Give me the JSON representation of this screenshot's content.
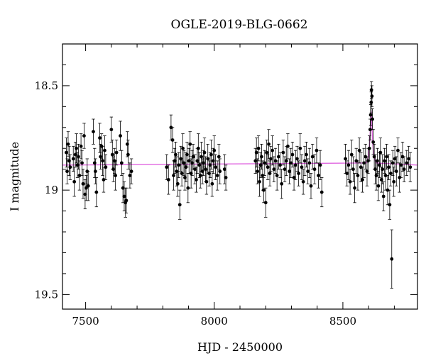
{
  "chart_data": {
    "type": "scatter",
    "title": "OGLE-2019-BLG-0662",
    "xlabel": "HJD - 2450000",
    "ylabel": "I magnitude",
    "xlim": [
      7410,
      8790
    ],
    "ylim": [
      19.57,
      18.3
    ],
    "y_inverted": true,
    "grid": false,
    "x_ticks": [
      {
        "value": 7500,
        "label": "7500"
      },
      {
        "value": 8000,
        "label": "8000"
      },
      {
        "value": 8500,
        "label": "8500"
      }
    ],
    "y_ticks": [
      {
        "value": 18.5,
        "label": "18.5"
      },
      {
        "value": 19.0,
        "label": "19"
      },
      {
        "value": 19.5,
        "label": "19.5"
      }
    ],
    "colors": {
      "points": "#000000",
      "model": "#e066e0"
    },
    "baseline_mag": 18.88,
    "model": {
      "x": [
        7410,
        8590,
        8600,
        8605,
        8608,
        8610,
        8612,
        8615,
        8620,
        8630,
        8790
      ],
      "y": [
        18.88,
        18.87,
        18.84,
        18.76,
        18.66,
        18.62,
        18.66,
        18.76,
        18.84,
        18.87,
        18.88
      ]
    },
    "points": [
      {
        "x": 7425,
        "y": 18.82,
        "err": 0.07
      },
      {
        "x": 7428,
        "y": 18.91,
        "err": 0.06
      },
      {
        "x": 7432,
        "y": 18.78,
        "err": 0.06
      },
      {
        "x": 7436,
        "y": 18.86,
        "err": 0.07
      },
      {
        "x": 7440,
        "y": 18.89,
        "err": 0.06
      },
      {
        "x": 7452,
        "y": 18.85,
        "err": 0.06
      },
      {
        "x": 7456,
        "y": 18.96,
        "err": 0.07
      },
      {
        "x": 7460,
        "y": 18.83,
        "err": 0.06
      },
      {
        "x": 7464,
        "y": 18.8,
        "err": 0.07
      },
      {
        "x": 7468,
        "y": 18.88,
        "err": 0.06
      },
      {
        "x": 7472,
        "y": 18.84,
        "err": 0.06
      },
      {
        "x": 7476,
        "y": 18.93,
        "err": 0.07
      },
      {
        "x": 7482,
        "y": 18.79,
        "err": 0.06
      },
      {
        "x": 7486,
        "y": 18.87,
        "err": 0.06
      },
      {
        "x": 7490,
        "y": 18.97,
        "err": 0.07
      },
      {
        "x": 7494,
        "y": 18.74,
        "err": 0.06
      },
      {
        "x": 7498,
        "y": 19.02,
        "err": 0.07
      },
      {
        "x": 7502,
        "y": 18.99,
        "err": 0.06
      },
      {
        "x": 7506,
        "y": 18.91,
        "err": 0.06
      },
      {
        "x": 7510,
        "y": 18.98,
        "err": 0.07
      },
      {
        "x": 7530,
        "y": 18.72,
        "err": 0.06
      },
      {
        "x": 7535,
        "y": 18.87,
        "err": 0.07
      },
      {
        "x": 7538,
        "y": 18.91,
        "err": 0.06
      },
      {
        "x": 7542,
        "y": 19.01,
        "err": 0.07
      },
      {
        "x": 7555,
        "y": 18.75,
        "err": 0.07
      },
      {
        "x": 7558,
        "y": 18.84,
        "err": 0.06
      },
      {
        "x": 7562,
        "y": 18.79,
        "err": 0.06
      },
      {
        "x": 7566,
        "y": 18.86,
        "err": 0.07
      },
      {
        "x": 7570,
        "y": 18.95,
        "err": 0.06
      },
      {
        "x": 7574,
        "y": 18.81,
        "err": 0.07
      },
      {
        "x": 7578,
        "y": 18.89,
        "err": 0.06
      },
      {
        "x": 7600,
        "y": 18.71,
        "err": 0.06
      },
      {
        "x": 7604,
        "y": 18.83,
        "err": 0.07
      },
      {
        "x": 7608,
        "y": 18.9,
        "err": 0.06
      },
      {
        "x": 7612,
        "y": 18.86,
        "err": 0.06
      },
      {
        "x": 7616,
        "y": 18.93,
        "err": 0.07
      },
      {
        "x": 7620,
        "y": 18.82,
        "err": 0.06
      },
      {
        "x": 7635,
        "y": 18.74,
        "err": 0.07
      },
      {
        "x": 7640,
        "y": 18.87,
        "err": 0.06
      },
      {
        "x": 7645,
        "y": 18.99,
        "err": 0.07
      },
      {
        "x": 7650,
        "y": 19.03,
        "err": 0.07
      },
      {
        "x": 7655,
        "y": 19.06,
        "err": 0.07
      },
      {
        "x": 7658,
        "y": 19.05,
        "err": 0.06
      },
      {
        "x": 7662,
        "y": 18.78,
        "err": 0.06
      },
      {
        "x": 7665,
        "y": 18.83,
        "err": 0.07
      },
      {
        "x": 7672,
        "y": 18.93,
        "err": 0.06
      },
      {
        "x": 7678,
        "y": 18.91,
        "err": 0.06
      },
      {
        "x": 7815,
        "y": 18.89,
        "err": 0.06
      },
      {
        "x": 7822,
        "y": 18.95,
        "err": 0.07
      },
      {
        "x": 7832,
        "y": 18.7,
        "err": 0.06
      },
      {
        "x": 7838,
        "y": 18.76,
        "err": 0.06
      },
      {
        "x": 7842,
        "y": 18.93,
        "err": 0.07
      },
      {
        "x": 7846,
        "y": 18.86,
        "err": 0.06
      },
      {
        "x": 7850,
        "y": 18.83,
        "err": 0.06
      },
      {
        "x": 7854,
        "y": 18.91,
        "err": 0.07
      },
      {
        "x": 7858,
        "y": 18.97,
        "err": 0.06
      },
      {
        "x": 7862,
        "y": 18.88,
        "err": 0.06
      },
      {
        "x": 7866,
        "y": 19.07,
        "err": 0.07
      },
      {
        "x": 7870,
        "y": 18.85,
        "err": 0.06
      },
      {
        "x": 7874,
        "y": 18.92,
        "err": 0.06
      },
      {
        "x": 7878,
        "y": 18.8,
        "err": 0.07
      },
      {
        "x": 7882,
        "y": 18.87,
        "err": 0.06
      },
      {
        "x": 7886,
        "y": 18.94,
        "err": 0.06
      },
      {
        "x": 7890,
        "y": 18.89,
        "err": 0.07
      },
      {
        "x": 7894,
        "y": 18.83,
        "err": 0.06
      },
      {
        "x": 7898,
        "y": 18.99,
        "err": 0.07
      },
      {
        "x": 7902,
        "y": 18.86,
        "err": 0.06
      },
      {
        "x": 7906,
        "y": 18.78,
        "err": 0.06
      },
      {
        "x": 7910,
        "y": 18.92,
        "err": 0.07
      },
      {
        "x": 7914,
        "y": 18.87,
        "err": 0.06
      },
      {
        "x": 7918,
        "y": 18.84,
        "err": 0.06
      },
      {
        "x": 7925,
        "y": 18.9,
        "err": 0.07
      },
      {
        "x": 7930,
        "y": 18.95,
        "err": 0.06
      },
      {
        "x": 7934,
        "y": 18.86,
        "err": 0.06
      },
      {
        "x": 7938,
        "y": 18.8,
        "err": 0.07
      },
      {
        "x": 7942,
        "y": 18.88,
        "err": 0.06
      },
      {
        "x": 7946,
        "y": 18.93,
        "err": 0.06
      },
      {
        "x": 7950,
        "y": 18.84,
        "err": 0.07
      },
      {
        "x": 7954,
        "y": 18.91,
        "err": 0.06
      },
      {
        "x": 7958,
        "y": 18.87,
        "err": 0.06
      },
      {
        "x": 7962,
        "y": 18.82,
        "err": 0.07
      },
      {
        "x": 7966,
        "y": 18.9,
        "err": 0.06
      },
      {
        "x": 7970,
        "y": 18.96,
        "err": 0.06
      },
      {
        "x": 7975,
        "y": 18.85,
        "err": 0.07
      },
      {
        "x": 7980,
        "y": 18.92,
        "err": 0.06
      },
      {
        "x": 7984,
        "y": 18.88,
        "err": 0.06
      },
      {
        "x": 7988,
        "y": 18.83,
        "err": 0.07
      },
      {
        "x": 7992,
        "y": 18.97,
        "err": 0.06
      },
      {
        "x": 7996,
        "y": 18.86,
        "err": 0.06
      },
      {
        "x": 8000,
        "y": 18.81,
        "err": 0.07
      },
      {
        "x": 8005,
        "y": 18.89,
        "err": 0.06
      },
      {
        "x": 8012,
        "y": 18.93,
        "err": 0.07
      },
      {
        "x": 8018,
        "y": 18.84,
        "err": 0.06
      },
      {
        "x": 8022,
        "y": 18.91,
        "err": 0.06
      },
      {
        "x": 8040,
        "y": 18.9,
        "err": 0.07
      },
      {
        "x": 8045,
        "y": 18.94,
        "err": 0.06
      },
      {
        "x": 8160,
        "y": 18.86,
        "err": 0.06
      },
      {
        "x": 8164,
        "y": 18.82,
        "err": 0.07
      },
      {
        "x": 8168,
        "y": 18.91,
        "err": 0.06
      },
      {
        "x": 8172,
        "y": 18.8,
        "err": 0.06
      },
      {
        "x": 8176,
        "y": 18.96,
        "err": 0.07
      },
      {
        "x": 8180,
        "y": 18.88,
        "err": 0.06
      },
      {
        "x": 8184,
        "y": 18.84,
        "err": 0.06
      },
      {
        "x": 8188,
        "y": 18.93,
        "err": 0.07
      },
      {
        "x": 8192,
        "y": 19.0,
        "err": 0.06
      },
      {
        "x": 8196,
        "y": 18.87,
        "err": 0.06
      },
      {
        "x": 8200,
        "y": 19.06,
        "err": 0.07
      },
      {
        "x": 8204,
        "y": 18.82,
        "err": 0.06
      },
      {
        "x": 8208,
        "y": 18.89,
        "err": 0.06
      },
      {
        "x": 8212,
        "y": 18.78,
        "err": 0.07
      },
      {
        "x": 8216,
        "y": 18.92,
        "err": 0.06
      },
      {
        "x": 8220,
        "y": 18.85,
        "err": 0.06
      },
      {
        "x": 8226,
        "y": 18.81,
        "err": 0.07
      },
      {
        "x": 8232,
        "y": 18.9,
        "err": 0.06
      },
      {
        "x": 8238,
        "y": 18.86,
        "err": 0.06
      },
      {
        "x": 8244,
        "y": 18.93,
        "err": 0.07
      },
      {
        "x": 8250,
        "y": 18.84,
        "err": 0.06
      },
      {
        "x": 8256,
        "y": 18.88,
        "err": 0.06
      },
      {
        "x": 8262,
        "y": 18.97,
        "err": 0.07
      },
      {
        "x": 8268,
        "y": 18.82,
        "err": 0.06
      },
      {
        "x": 8274,
        "y": 18.9,
        "err": 0.06
      },
      {
        "x": 8280,
        "y": 18.86,
        "err": 0.07
      },
      {
        "x": 8286,
        "y": 18.79,
        "err": 0.06
      },
      {
        "x": 8292,
        "y": 18.91,
        "err": 0.06
      },
      {
        "x": 8298,
        "y": 18.87,
        "err": 0.07
      },
      {
        "x": 8304,
        "y": 18.83,
        "err": 0.06
      },
      {
        "x": 8310,
        "y": 18.94,
        "err": 0.06
      },
      {
        "x": 8316,
        "y": 18.88,
        "err": 0.07
      },
      {
        "x": 8322,
        "y": 18.85,
        "err": 0.06
      },
      {
        "x": 8328,
        "y": 18.92,
        "err": 0.06
      },
      {
        "x": 8334,
        "y": 18.8,
        "err": 0.07
      },
      {
        "x": 8340,
        "y": 18.89,
        "err": 0.06
      },
      {
        "x": 8346,
        "y": 18.96,
        "err": 0.06
      },
      {
        "x": 8352,
        "y": 18.86,
        "err": 0.07
      },
      {
        "x": 8358,
        "y": 18.83,
        "err": 0.06
      },
      {
        "x": 8364,
        "y": 18.91,
        "err": 0.06
      },
      {
        "x": 8370,
        "y": 18.87,
        "err": 0.07
      },
      {
        "x": 8376,
        "y": 18.98,
        "err": 0.06
      },
      {
        "x": 8382,
        "y": 18.84,
        "err": 0.06
      },
      {
        "x": 8390,
        "y": 18.9,
        "err": 0.07
      },
      {
        "x": 8398,
        "y": 18.81,
        "err": 0.06
      },
      {
        "x": 8405,
        "y": 18.93,
        "err": 0.06
      },
      {
        "x": 8412,
        "y": 18.88,
        "err": 0.07
      },
      {
        "x": 8418,
        "y": 19.01,
        "err": 0.07
      },
      {
        "x": 8510,
        "y": 18.85,
        "err": 0.07
      },
      {
        "x": 8516,
        "y": 18.92,
        "err": 0.06
      },
      {
        "x": 8522,
        "y": 18.88,
        "err": 0.07
      },
      {
        "x": 8528,
        "y": 18.96,
        "err": 0.06
      },
      {
        "x": 8534,
        "y": 18.83,
        "err": 0.07
      },
      {
        "x": 8540,
        "y": 18.9,
        "err": 0.06
      },
      {
        "x": 8546,
        "y": 18.99,
        "err": 0.07
      },
      {
        "x": 8552,
        "y": 18.86,
        "err": 0.06
      },
      {
        "x": 8558,
        "y": 18.93,
        "err": 0.07
      },
      {
        "x": 8564,
        "y": 18.81,
        "err": 0.06
      },
      {
        "x": 8570,
        "y": 18.89,
        "err": 0.07
      },
      {
        "x": 8576,
        "y": 18.95,
        "err": 0.06
      },
      {
        "x": 8582,
        "y": 18.87,
        "err": 0.07
      },
      {
        "x": 8588,
        "y": 18.84,
        "err": 0.06
      },
      {
        "x": 8594,
        "y": 18.91,
        "err": 0.07
      },
      {
        "x": 8598,
        "y": 18.86,
        "err": 0.06
      },
      {
        "x": 8603,
        "y": 18.8,
        "err": 0.06
      },
      {
        "x": 8606,
        "y": 18.71,
        "err": 0.05
      },
      {
        "x": 8608,
        "y": 18.64,
        "err": 0.05
      },
      {
        "x": 8610,
        "y": 18.58,
        "err": 0.05
      },
      {
        "x": 8611,
        "y": 18.52,
        "err": 0.04
      },
      {
        "x": 8613,
        "y": 18.55,
        "err": 0.05
      },
      {
        "x": 8615,
        "y": 18.66,
        "err": 0.05
      },
      {
        "x": 8618,
        "y": 18.77,
        "err": 0.06
      },
      {
        "x": 8622,
        "y": 18.84,
        "err": 0.06
      },
      {
        "x": 8626,
        "y": 18.9,
        "err": 0.07
      },
      {
        "x": 8630,
        "y": 18.93,
        "err": 0.07
      },
      {
        "x": 8634,
        "y": 18.86,
        "err": 0.06
      },
      {
        "x": 8638,
        "y": 18.98,
        "err": 0.07
      },
      {
        "x": 8642,
        "y": 18.88,
        "err": 0.06
      },
      {
        "x": 8646,
        "y": 18.82,
        "err": 0.07
      },
      {
        "x": 8650,
        "y": 18.95,
        "err": 0.06
      },
      {
        "x": 8654,
        "y": 18.9,
        "err": 0.07
      },
      {
        "x": 8658,
        "y": 19.03,
        "err": 0.07
      },
      {
        "x": 8662,
        "y": 18.86,
        "err": 0.06
      },
      {
        "x": 8666,
        "y": 18.93,
        "err": 0.07
      },
      {
        "x": 8670,
        "y": 18.84,
        "err": 0.06
      },
      {
        "x": 8674,
        "y": 19.0,
        "err": 0.07
      },
      {
        "x": 8678,
        "y": 18.89,
        "err": 0.06
      },
      {
        "x": 8682,
        "y": 19.07,
        "err": 0.07
      },
      {
        "x": 8686,
        "y": 18.92,
        "err": 0.06
      },
      {
        "x": 8690,
        "y": 19.33,
        "err": 0.14
      },
      {
        "x": 8694,
        "y": 18.87,
        "err": 0.06
      },
      {
        "x": 8698,
        "y": 18.96,
        "err": 0.07
      },
      {
        "x": 8702,
        "y": 18.85,
        "err": 0.06
      },
      {
        "x": 8708,
        "y": 18.91,
        "err": 0.07
      },
      {
        "x": 8714,
        "y": 18.81,
        "err": 0.06
      },
      {
        "x": 8720,
        "y": 18.94,
        "err": 0.07
      },
      {
        "x": 8726,
        "y": 18.88,
        "err": 0.06
      },
      {
        "x": 8732,
        "y": 18.84,
        "err": 0.07
      },
      {
        "x": 8738,
        "y": 18.9,
        "err": 0.06
      },
      {
        "x": 8748,
        "y": 18.87,
        "err": 0.06
      },
      {
        "x": 8756,
        "y": 18.85,
        "err": 0.06
      },
      {
        "x": 8762,
        "y": 18.89,
        "err": 0.07
      }
    ]
  }
}
